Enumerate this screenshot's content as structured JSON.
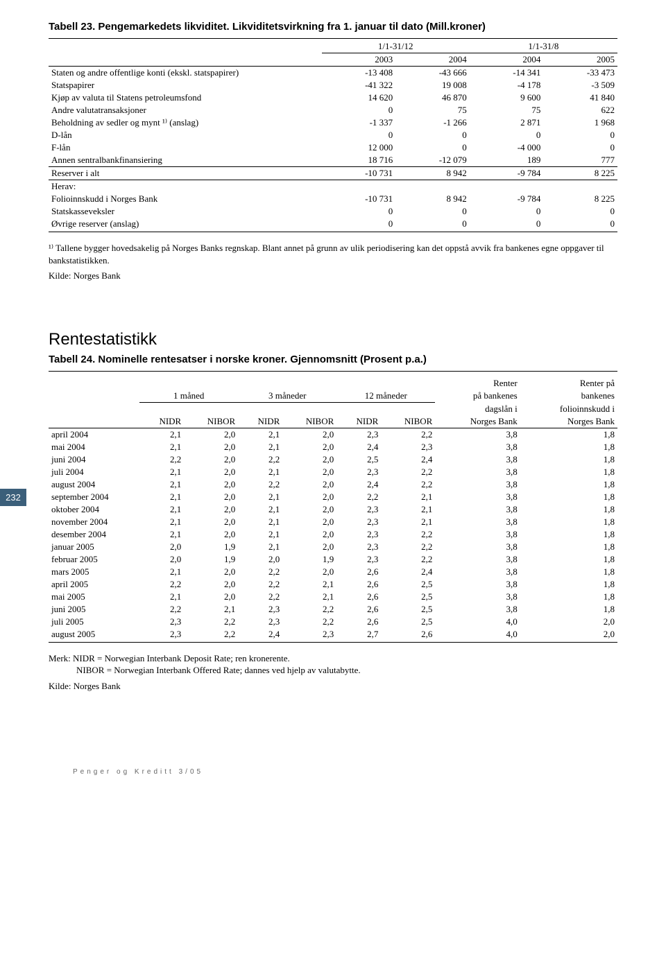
{
  "page_number": "232",
  "t23": {
    "title": "Tabell 23. Pengemarkedets likviditet. Likviditetsvirkning fra 1. januar til dato (Mill.kroner)",
    "period_headers": [
      "1/1-31/12",
      "1/1-31/8"
    ],
    "year_headers": [
      "2003",
      "2004",
      "2004",
      "2005"
    ],
    "rows": [
      {
        "label": "Staten og andre offentlige konti (ekskl. statspapirer)",
        "v": [
          "-13 408",
          "-43 666",
          "-14 341",
          "-33 473"
        ]
      },
      {
        "label": "Statspapirer",
        "v": [
          "-41 322",
          "19 008",
          "-4 178",
          "-3 509"
        ]
      },
      {
        "label": "Kjøp av valuta til Statens petroleumsfond",
        "v": [
          "14 620",
          "46 870",
          "9 600",
          "41 840"
        ]
      },
      {
        "label": "Andre valutatransaksjoner",
        "v": [
          "0",
          "75",
          "75",
          "622"
        ]
      },
      {
        "label": "Beholdning av sedler og mynt ¹⁾ (anslag)",
        "v": [
          "-1 337",
          "-1 266",
          "2 871",
          "1 968"
        ]
      },
      {
        "label": "D-lån",
        "v": [
          "0",
          "0",
          "0",
          "0"
        ]
      },
      {
        "label": "F-lån",
        "v": [
          "12 000",
          "0",
          "-4 000",
          "0"
        ]
      },
      {
        "label": "Annen sentralbankfinansiering",
        "v": [
          "18 716",
          "-12 079",
          "189",
          "777"
        ]
      }
    ],
    "reserve_row": {
      "label": "Reserver i alt",
      "v": [
        "-10 731",
        "8 942",
        "-9 784",
        "8 225"
      ]
    },
    "herav_label": "Herav:",
    "herav_rows": [
      {
        "label": "Folioinnskudd i Norges Bank",
        "v": [
          "-10 731",
          "8 942",
          "-9 784",
          "8 225"
        ]
      },
      {
        "label": "Statskasseveksler",
        "v": [
          "0",
          "0",
          "0",
          "0"
        ]
      },
      {
        "label": "Øvrige reserver (anslag)",
        "v": [
          "0",
          "0",
          "0",
          "0"
        ]
      }
    ],
    "footnote": "¹⁾ Tallene bygger hovedsakelig på Norges Banks regnskap. Blant annet på grunn av ulik periodisering kan det oppstå avvik fra bankenes egne oppgaver til bankstatistikken.",
    "source": "Kilde: Norges Bank"
  },
  "section_title": "Rentestatistikk",
  "t24": {
    "title": "Tabell 24. Nominelle rentesatser i norske kroner. Gjennomsnitt (Prosent p.a.)",
    "group_headers": [
      "1 måned",
      "3 måneder",
      "12 måneder"
    ],
    "extra_headers_top": [
      "Renter",
      "Renter på"
    ],
    "extra_headers_mid": [
      "på bankenes",
      "bankenes"
    ],
    "extra_headers_mid2": [
      "dagslån i",
      "folioinnskudd i"
    ],
    "sub_headers": [
      "NIDR",
      "NIBOR",
      "NIDR",
      "NIBOR",
      "NIDR",
      "NIBOR",
      "Norges Bank",
      "Norges Bank"
    ],
    "rows": [
      {
        "label": "april 2004",
        "v": [
          "2,1",
          "2,0",
          "2,1",
          "2,0",
          "2,3",
          "2,2",
          "3,8",
          "1,8"
        ]
      },
      {
        "label": "mai 2004",
        "v": [
          "2,1",
          "2,0",
          "2,1",
          "2,0",
          "2,4",
          "2,3",
          "3,8",
          "1,8"
        ]
      },
      {
        "label": "juni 2004",
        "v": [
          "2,2",
          "2,0",
          "2,2",
          "2,0",
          "2,5",
          "2,4",
          "3,8",
          "1,8"
        ]
      },
      {
        "label": "juli 2004",
        "v": [
          "2,1",
          "2,0",
          "2,1",
          "2,0",
          "2,3",
          "2,2",
          "3,8",
          "1,8"
        ]
      },
      {
        "label": "august 2004",
        "v": [
          "2,1",
          "2,0",
          "2,2",
          "2,0",
          "2,4",
          "2,2",
          "3,8",
          "1,8"
        ]
      },
      {
        "label": "september 2004",
        "v": [
          "2,1",
          "2,0",
          "2,1",
          "2,0",
          "2,2",
          "2,1",
          "3,8",
          "1,8"
        ]
      },
      {
        "label": "oktober 2004",
        "v": [
          "2,1",
          "2,0",
          "2,1",
          "2,0",
          "2,3",
          "2,1",
          "3,8",
          "1,8"
        ]
      },
      {
        "label": "november 2004",
        "v": [
          "2,1",
          "2,0",
          "2,1",
          "2,0",
          "2,3",
          "2,1",
          "3,8",
          "1,8"
        ]
      },
      {
        "label": "desember 2004",
        "v": [
          "2,1",
          "2,0",
          "2,1",
          "2,0",
          "2,3",
          "2,2",
          "3,8",
          "1,8"
        ]
      },
      {
        "label": "januar 2005",
        "v": [
          "2,0",
          "1,9",
          "2,1",
          "2,0",
          "2,3",
          "2,2",
          "3,8",
          "1,8"
        ]
      },
      {
        "label": "februar 2005",
        "v": [
          "2,0",
          "1,9",
          "2,0",
          "1,9",
          "2,3",
          "2,2",
          "3,8",
          "1,8"
        ]
      },
      {
        "label": "mars 2005",
        "v": [
          "2,1",
          "2,0",
          "2,2",
          "2,0",
          "2,6",
          "2,4",
          "3,8",
          "1,8"
        ]
      },
      {
        "label": "april 2005",
        "v": [
          "2,2",
          "2,0",
          "2,2",
          "2,1",
          "2,6",
          "2,5",
          "3,8",
          "1,8"
        ]
      },
      {
        "label": "mai 2005",
        "v": [
          "2,1",
          "2,0",
          "2,2",
          "2,1",
          "2,6",
          "2,5",
          "3,8",
          "1,8"
        ]
      },
      {
        "label": "juni 2005",
        "v": [
          "2,2",
          "2,1",
          "2,3",
          "2,2",
          "2,6",
          "2,5",
          "3,8",
          "1,8"
        ]
      },
      {
        "label": "juli 2005",
        "v": [
          "2,3",
          "2,2",
          "2,3",
          "2,2",
          "2,6",
          "2,5",
          "4,0",
          "2,0"
        ]
      },
      {
        "label": "august 2005",
        "v": [
          "2,3",
          "2,2",
          "2,4",
          "2,3",
          "2,7",
          "2,6",
          "4,0",
          "2,0"
        ]
      }
    ],
    "note_line1": "Merk: NIDR = Norwegian Interbank Deposit Rate; ren kronerente.",
    "note_line2": "NIBOR = Norwegian Interbank Offered Rate; dannes ved hjelp av valutabytte.",
    "source": "Kilde: Norges Bank"
  },
  "footer": "Penger og Kreditt 3/05"
}
